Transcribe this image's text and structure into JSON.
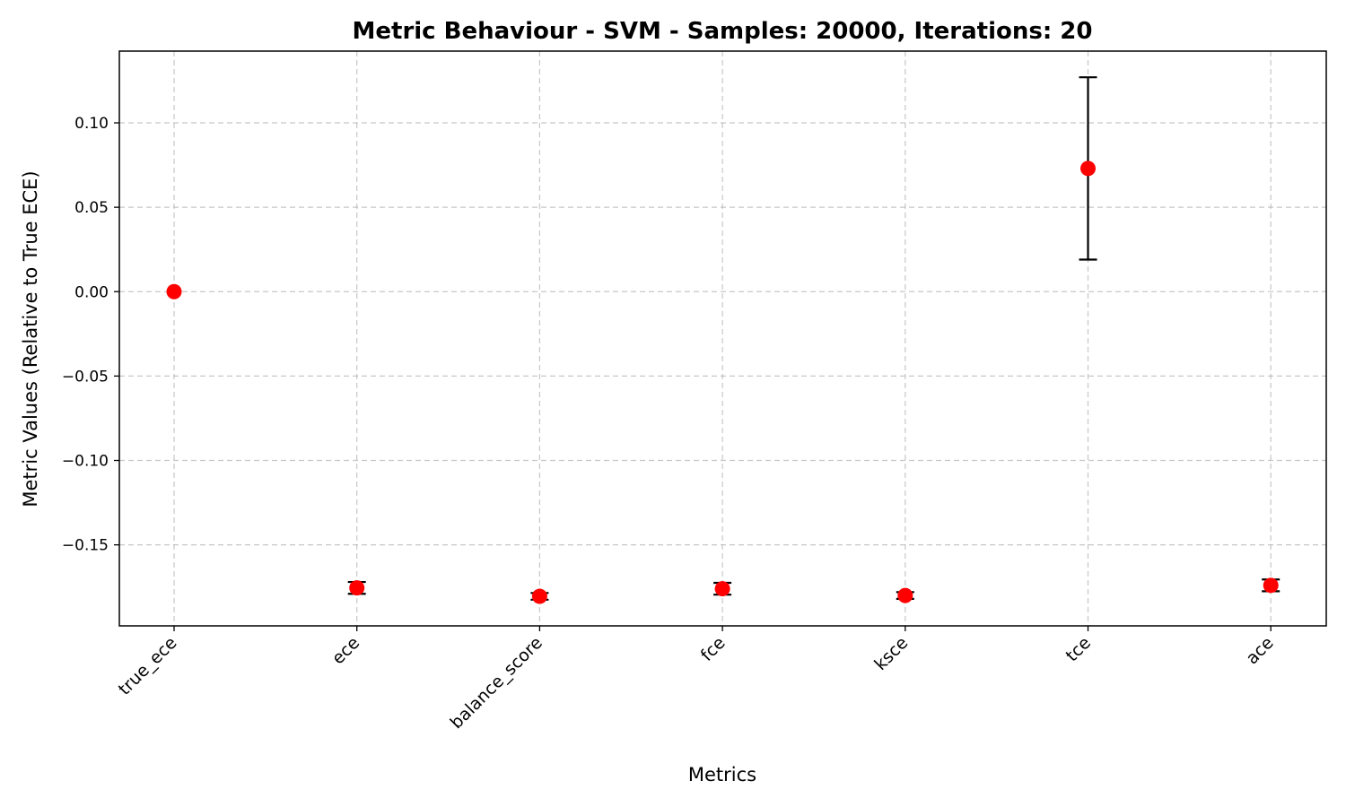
{
  "chart_data": {
    "type": "scatter",
    "title": "Metric Behaviour - SVM - Samples: 20000, Iterations: 20",
    "xlabel": "Metrics",
    "ylabel": "Metric Values (Relative to True ECE)",
    "categories": [
      "true_ece",
      "ece",
      "balance_score",
      "fce",
      "ksce",
      "tce",
      "ace"
    ],
    "values": [
      0.0,
      -0.1755,
      -0.1805,
      -0.176,
      -0.18,
      0.073,
      -0.174
    ],
    "errors": [
      0.0,
      0.0035,
      0.002,
      0.0035,
      0.002,
      0.054,
      0.0035
    ],
    "ylim": [
      -0.198,
      0.1425
    ],
    "yticks": [
      -0.15,
      -0.1,
      -0.05,
      0.0,
      0.05,
      0.1
    ],
    "ytick_labels": [
      "−0.15",
      "−0.10",
      "−0.05",
      "0.00",
      "0.05",
      "0.10"
    ],
    "grid": true,
    "marker_color": "#ff0000",
    "errorbar_color": "#000000"
  }
}
